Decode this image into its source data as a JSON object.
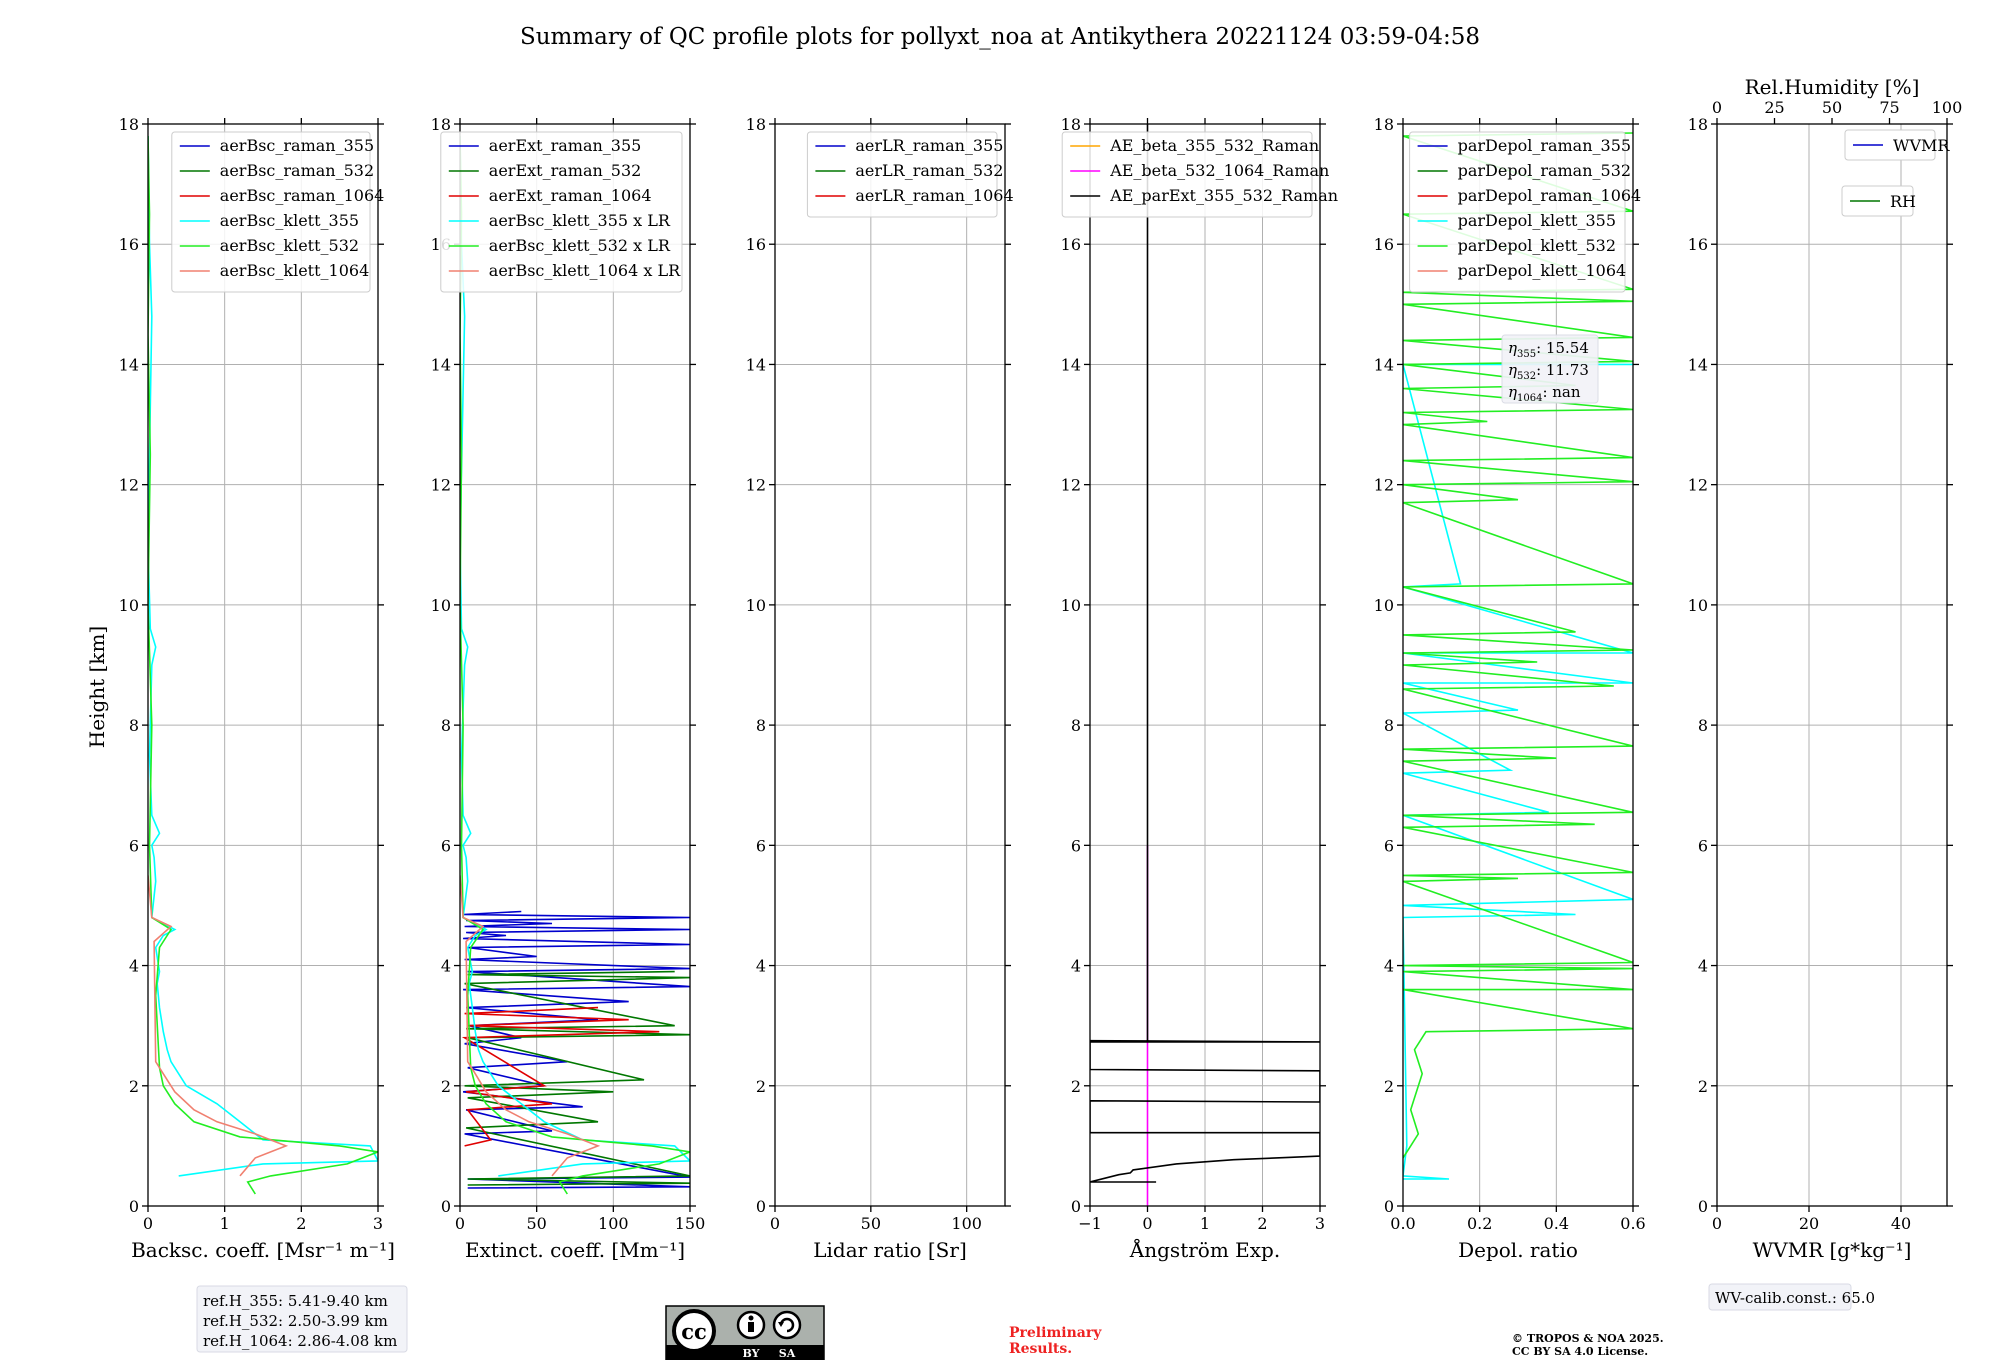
{
  "title": "Summary of QC profile plots for pollyxt_noa at Antikythera 20221124 03:59-04:58",
  "ylabel": "Height [km]",
  "colors": {
    "blue": "#0000cc",
    "darkgreen": "#007700",
    "red": "#e00000",
    "cyan": "#00ffff",
    "lime": "#22ee22",
    "salmon": "#f08070",
    "orange": "#ffa500",
    "magenta": "#ff00ff",
    "black": "#000000",
    "grid": "#b0b0b0",
    "box": "#f2f3f8",
    "preliminary": "#ee2222"
  },
  "chart_data": [
    {
      "type": "line",
      "xlabel": "Backsc. coeff. [Msr⁻¹ m⁻¹]",
      "xlim": [
        0,
        3
      ],
      "xticks": [
        0,
        1,
        2,
        3
      ],
      "ylim": [
        0,
        18
      ],
      "yticks": [
        0,
        2,
        4,
        6,
        8,
        10,
        12,
        14,
        16,
        18
      ],
      "legend": "top-right",
      "grid": true,
      "series": [
        {
          "name": "aerBsc_raman_355",
          "color": "blue",
          "x": [],
          "y": []
        },
        {
          "name": "aerBsc_raman_532",
          "color": "darkgreen",
          "x": [],
          "y": []
        },
        {
          "name": "aerBsc_raman_1064",
          "color": "red",
          "x": [],
          "y": []
        },
        {
          "name": "aerBsc_klett_355",
          "color": "cyan",
          "x": [
            0.4,
            1.5,
            3.0,
            2.9,
            1.5,
            1.2,
            0.9,
            0.5,
            0.3,
            0.25,
            0.2,
            0.15,
            0.12,
            0.15,
            0.1,
            0.2,
            0.35,
            0.05,
            0.1,
            0.08,
            0.05,
            0.15,
            0.05,
            0.02,
            0.05,
            0.1,
            0.03,
            0.0,
            0.05,
            0.02,
            0.0
          ],
          "y": [
            0.5,
            0.7,
            0.75,
            1.0,
            1.1,
            1.4,
            1.7,
            2.0,
            2.4,
            2.6,
            2.9,
            3.3,
            3.7,
            3.9,
            4.3,
            4.5,
            4.6,
            4.8,
            5.4,
            5.8,
            6.0,
            6.2,
            6.5,
            7.5,
            9.0,
            9.3,
            9.6,
            11.0,
            14.8,
            16.0,
            17.8
          ]
        },
        {
          "name": "aerBsc_klett_532",
          "color": "lime",
          "x": [
            1.4,
            1.3,
            1.6,
            2.6,
            3.0,
            2.5,
            1.2,
            0.6,
            0.35,
            0.2,
            0.15,
            0.1,
            0.15,
            0.3,
            0.05,
            0.02,
            0.05,
            0.0,
            0.03,
            0.0,
            0.02,
            0.0
          ],
          "y": [
            0.2,
            0.4,
            0.5,
            0.7,
            0.9,
            1.0,
            1.15,
            1.4,
            1.7,
            2.0,
            2.3,
            3.5,
            4.3,
            4.6,
            4.8,
            6.0,
            8.0,
            10.0,
            12.5,
            14.5,
            16.5,
            17.8
          ]
        },
        {
          "name": "aerBsc_klett_1064",
          "color": "salmon",
          "x": [
            1.2,
            1.4,
            1.8,
            1.4,
            0.9,
            0.6,
            0.35,
            0.2,
            0.1,
            0.08,
            0.3,
            0.05,
            0.0
          ],
          "y": [
            0.5,
            0.8,
            1.0,
            1.2,
            1.4,
            1.6,
            1.9,
            2.2,
            2.4,
            4.4,
            4.65,
            4.8,
            5.5
          ]
        }
      ]
    },
    {
      "type": "line",
      "xlabel": "Extinct. coeff. [Mm⁻¹]",
      "xlim": [
        0,
        150
      ],
      "xticks": [
        0,
        50,
        100,
        150
      ],
      "ylim": [
        0,
        18
      ],
      "yticks": [
        0,
        2,
        4,
        6,
        8,
        10,
        12,
        14,
        16,
        18
      ],
      "legend": "top-right",
      "grid": true,
      "series": [
        {
          "name": "aerExt_raman_355",
          "color": "blue",
          "x": [
            5,
            150,
            5,
            150,
            3,
            60,
            4,
            80,
            2,
            55,
            5,
            70,
            3,
            40,
            6,
            90,
            4,
            110,
            2,
            150,
            5,
            150,
            3,
            50,
            5,
            150,
            2,
            30,
            4,
            150,
            3,
            60,
            4,
            150,
            2,
            40
          ],
          "y": [
            0.3,
            0.32,
            0.45,
            0.48,
            1.2,
            1.25,
            1.6,
            1.65,
            1.9,
            2.0,
            2.3,
            2.4,
            2.7,
            2.8,
            3.0,
            3.1,
            3.3,
            3.4,
            3.6,
            3.65,
            3.9,
            3.95,
            4.1,
            4.15,
            4.3,
            4.35,
            4.45,
            4.5,
            4.55,
            4.6,
            4.65,
            4.7,
            4.75,
            4.8,
            4.85,
            4.9
          ]
        },
        {
          "name": "aerExt_raman_532",
          "color": "darkgreen",
          "x": [
            5,
            150,
            5,
            150,
            4,
            90,
            5,
            100,
            3,
            120,
            5,
            150,
            4,
            140,
            3,
            150,
            5,
            140
          ],
          "y": [
            0.35,
            0.38,
            0.45,
            0.5,
            1.3,
            1.4,
            1.8,
            1.9,
            2.0,
            2.1,
            2.8,
            2.85,
            2.95,
            3.0,
            3.7,
            3.8,
            3.85,
            3.9
          ]
        },
        {
          "name": "aerExt_raman_1064",
          "color": "red",
          "x": [
            3,
            20,
            5,
            60,
            4,
            55,
            3,
            130,
            5,
            110,
            3,
            90
          ],
          "y": [
            1.0,
            1.1,
            1.6,
            1.7,
            1.9,
            2.0,
            2.8,
            2.9,
            3.0,
            3.1,
            3.2,
            3.3
          ]
        },
        {
          "name": "aerBsc_klett_355 x LR",
          "color": "cyan",
          "x": [
            25,
            80,
            150,
            140,
            80,
            55,
            40,
            25,
            15,
            12,
            10,
            8,
            6,
            8,
            5,
            10,
            17,
            2,
            5,
            4,
            2,
            7,
            2,
            1,
            3,
            5,
            1,
            0,
            3,
            1,
            0
          ],
          "y": [
            0.5,
            0.7,
            0.75,
            1.0,
            1.1,
            1.4,
            1.7,
            2.0,
            2.4,
            2.6,
            2.9,
            3.3,
            3.7,
            3.9,
            4.3,
            4.5,
            4.6,
            4.8,
            5.4,
            5.8,
            6.0,
            6.2,
            6.5,
            7.5,
            9.0,
            9.3,
            9.6,
            11.0,
            14.8,
            16.0,
            17.8
          ]
        },
        {
          "name": "aerBsc_klett_532 x LR",
          "color": "lime",
          "x": [
            70,
            65,
            80,
            130,
            150,
            125,
            60,
            30,
            17,
            10,
            7,
            5,
            7,
            15,
            2,
            1,
            2,
            0,
            1,
            0,
            1,
            0
          ],
          "y": [
            0.2,
            0.4,
            0.5,
            0.7,
            0.9,
            1.0,
            1.15,
            1.4,
            1.7,
            2.0,
            2.3,
            3.5,
            4.3,
            4.6,
            4.8,
            6.0,
            8.0,
            10.0,
            12.5,
            14.5,
            16.5,
            17.8
          ]
        },
        {
          "name": "aerBsc_klett_1064 x LR",
          "color": "salmon",
          "x": [
            60,
            70,
            90,
            70,
            45,
            30,
            17,
            10,
            5,
            4,
            15,
            2,
            0
          ],
          "y": [
            0.5,
            0.8,
            1.0,
            1.2,
            1.4,
            1.6,
            1.9,
            2.2,
            2.4,
            4.4,
            4.65,
            4.8,
            5.5
          ]
        }
      ]
    },
    {
      "type": "line",
      "xlabel": "Lidar ratio [Sr]",
      "xlim": [
        0,
        120
      ],
      "xticks": [
        0,
        50,
        100
      ],
      "ylim": [
        0,
        18
      ],
      "yticks": [
        0,
        2,
        4,
        6,
        8,
        10,
        12,
        14,
        16,
        18
      ],
      "legend": "top-right",
      "grid": true,
      "series": [
        {
          "name": "aerLR_raman_355",
          "color": "blue",
          "x": [],
          "y": []
        },
        {
          "name": "aerLR_raman_532",
          "color": "darkgreen",
          "x": [],
          "y": []
        },
        {
          "name": "aerLR_raman_1064",
          "color": "red",
          "x": [],
          "y": []
        }
      ]
    },
    {
      "type": "line",
      "xlabel": "Ångström Exp.",
      "xlim": [
        -1,
        3
      ],
      "xticks": [
        -1,
        0,
        1,
        2,
        3
      ],
      "ylim": [
        0,
        18
      ],
      "yticks": [
        0,
        2,
        4,
        6,
        8,
        10,
        12,
        14,
        16,
        18
      ],
      "legend": "top-right",
      "grid": true,
      "series": [
        {
          "name": "AE_beta_355_532_Raman",
          "color": "orange",
          "x": [],
          "y": []
        },
        {
          "name": "AE_beta_532_1064_Raman",
          "color": "magenta",
          "x": [
            0.0,
            0.0,
            0.0
          ],
          "y": [
            0.0,
            5.6,
            6.0
          ]
        },
        {
          "name": "AE_parExt_355_532_Raman",
          "color": "black",
          "x": [
            0.15,
            -1.0,
            -0.5,
            -0.3,
            -0.25,
            0.5,
            1.5,
            2.5,
            3.0,
            3.0,
            -1.0,
            -1.0,
            3.0,
            3.0,
            -1.0,
            -1.0,
            3.0,
            3.0,
            -1.0,
            -1.0,
            0.0,
            0.0
          ],
          "y": [
            0.4,
            0.4,
            0.52,
            0.55,
            0.6,
            0.7,
            0.77,
            0.81,
            0.83,
            1.22,
            1.22,
            1.75,
            1.73,
            2.25,
            2.27,
            2.75,
            2.73,
            2.73,
            2.73,
            2.73,
            2.73,
            18.0
          ]
        }
      ]
    },
    {
      "type": "line",
      "xlabel": "Depol. ratio",
      "xlim": [
        0,
        0.6
      ],
      "xticks": [
        0.0,
        0.2,
        0.4,
        0.6
      ],
      "ylim": [
        0,
        18
      ],
      "yticks": [
        0,
        2,
        4,
        6,
        8,
        10,
        12,
        14,
        16,
        18
      ],
      "legend": "top-right",
      "grid": true,
      "series": [
        {
          "name": "parDepol_raman_355",
          "color": "blue",
          "x": [],
          "y": []
        },
        {
          "name": "parDepol_raman_532",
          "color": "darkgreen",
          "x": [],
          "y": []
        },
        {
          "name": "parDepol_raman_1064",
          "color": "red",
          "x": [],
          "y": []
        },
        {
          "name": "parDepol_klett_355",
          "color": "cyan",
          "x": [
            0.0,
            0.12,
            0.0,
            0.01,
            0.0,
            0.45,
            0.0,
            0.6,
            0.0,
            0.38,
            0.0,
            0.28,
            0.0,
            0.3,
            0.0,
            0.6,
            0.0,
            0.6,
            0.0,
            0.15,
            0.0,
            0.6
          ],
          "y": [
            0.45,
            0.45,
            0.5,
            1.0,
            4.8,
            4.85,
            5.0,
            5.1,
            6.5,
            6.55,
            7.2,
            7.25,
            8.2,
            8.25,
            8.7,
            8.7,
            9.2,
            9.2,
            10.3,
            10.35,
            14.0,
            14.0
          ]
        },
        {
          "name": "parDepol_klett_532",
          "color": "lime",
          "x": [
            0.0,
            0.02,
            0.04,
            0.02,
            0.05,
            0.03,
            0.06,
            0.6,
            0.0,
            0.6,
            0.0,
            0.6,
            0.0,
            0.6,
            0.0,
            0.3,
            0.0,
            0.6,
            0.0,
            0.5,
            0.0,
            0.6,
            0.0,
            0.4,
            0.0,
            0.6,
            0.0,
            0.55,
            0.0,
            0.35,
            0.0,
            0.6,
            0.0,
            0.45,
            0.0,
            0.6,
            0.0,
            0.3,
            0.0,
            0.6,
            0.0,
            0.6,
            0.0,
            0.22,
            0.0,
            0.6,
            0.0,
            0.45,
            0.0,
            0.6,
            0.0,
            0.6,
            0.0,
            0.6,
            0.0,
            0.6,
            0.0,
            0.6,
            0.0,
            0.6
          ],
          "y": [
            0.8,
            1.0,
            1.2,
            1.6,
            2.2,
            2.6,
            2.9,
            2.95,
            3.6,
            3.6,
            3.9,
            3.95,
            4.0,
            4.05,
            5.4,
            5.45,
            5.5,
            5.55,
            6.3,
            6.35,
            6.5,
            6.55,
            7.4,
            7.45,
            7.6,
            7.65,
            8.6,
            8.65,
            9.0,
            9.05,
            9.2,
            9.25,
            9.5,
            9.55,
            10.3,
            10.35,
            11.7,
            11.75,
            12.0,
            12.05,
            12.4,
            12.45,
            13.0,
            13.05,
            13.2,
            13.25,
            13.6,
            13.65,
            14.0,
            14.05,
            14.4,
            14.45,
            15.0,
            15.05,
            15.2,
            15.25,
            16.5,
            16.55,
            17.8,
            17.85
          ]
        },
        {
          "name": "parDepol_klett_1064",
          "color": "salmon",
          "x": [],
          "y": []
        }
      ]
    },
    {
      "type": "line",
      "xlabel": "WVMR [g*kg⁻¹]",
      "xlim": [
        0,
        50
      ],
      "xticks": [
        0,
        20,
        40
      ],
      "ylim": [
        0,
        18
      ],
      "yticks": [
        0,
        2,
        4,
        6,
        8,
        10,
        12,
        14,
        16,
        18
      ],
      "top_xlabel": "Rel.Humidity [%]",
      "top_xlim": [
        0,
        100
      ],
      "top_xticks": [
        0,
        25,
        50,
        75,
        100
      ],
      "legend": "top-right",
      "grid": true,
      "series": [
        {
          "name": "WVMR",
          "color": "blue",
          "x": [],
          "y": []
        },
        {
          "name": "RH",
          "color": "darkgreen",
          "x": [],
          "y": []
        }
      ]
    }
  ],
  "notes": {
    "refh": [
      "ref.H_355: 5.41-9.40 km",
      "ref.H_532: 2.50-3.99 km",
      "ref.H_1064: 2.86-4.08 km"
    ],
    "eta_355_label": "η",
    "eta_355_sub": "355",
    "eta_355_val": ": 15.54",
    "eta_532_label": "η",
    "eta_532_sub": "532",
    "eta_532_val": ": 11.73",
    "eta_1064_label": "η",
    "eta_1064_sub": "1064",
    "eta_1064_val": ": nan",
    "wv_calib": "WV-calib.const.: 65.0",
    "preliminary": [
      "Preliminary",
      "Results."
    ],
    "copyright": [
      "© TROPOS & NOA 2025.",
      "CC BY SA 4.0 License."
    ]
  },
  "license_badge": {
    "cc": "cc",
    "by": "BY",
    "sa": "SA"
  }
}
